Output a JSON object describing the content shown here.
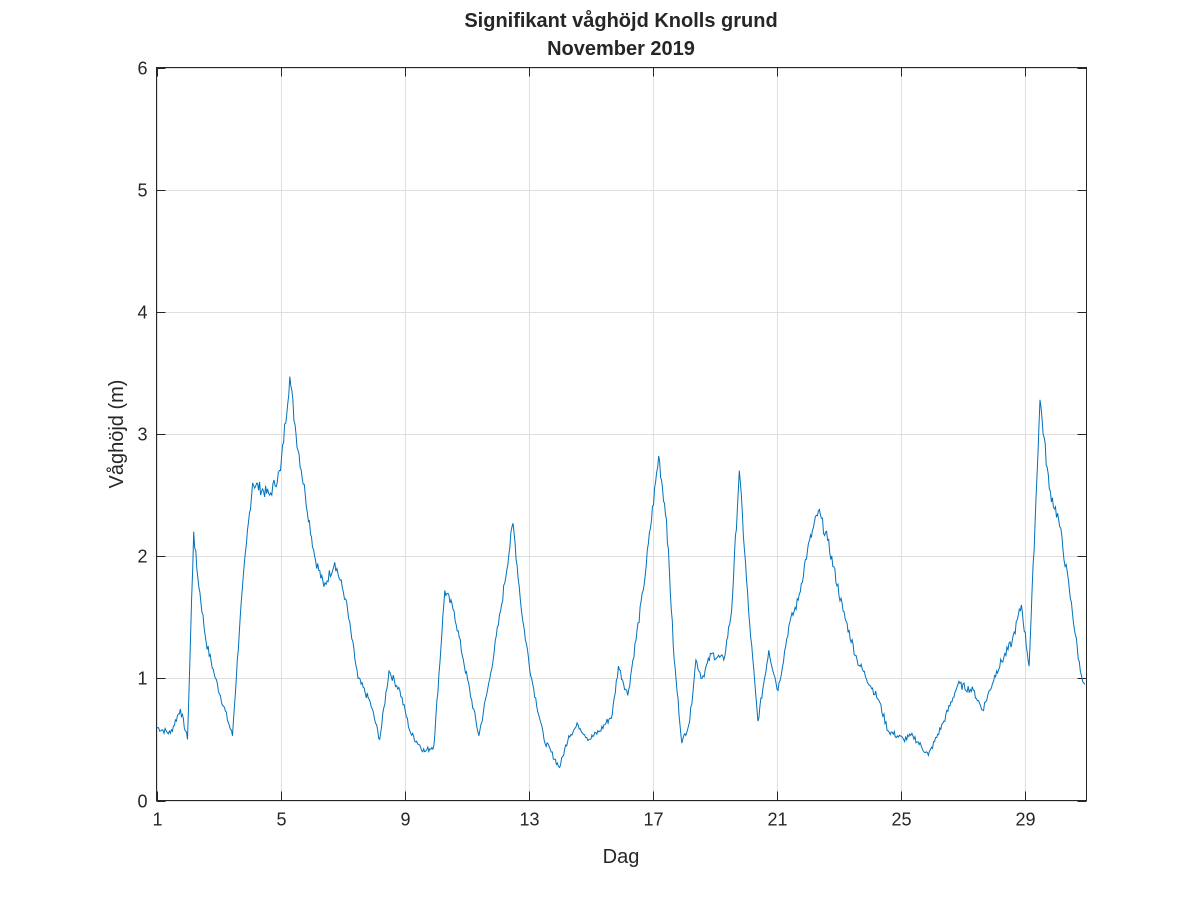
{
  "chart_data": {
    "type": "line",
    "title": [
      "Signifikant våghöjd Knolls grund",
      "November 2019"
    ],
    "xlabel": "Dag",
    "ylabel": "Våghöjd (m)",
    "xlim": [
      1,
      31
    ],
    "ylim": [
      0,
      6
    ],
    "xticks": [
      1,
      5,
      9,
      13,
      17,
      21,
      25,
      29
    ],
    "yticks": [
      0,
      1,
      2,
      3,
      4,
      5,
      6
    ],
    "grid": true,
    "line_color": "#0072BD",
    "series": [
      {
        "name": "Våghöjd",
        "x": [
          1,
          1.45,
          1.77,
          2.0,
          2.2,
          2.3,
          2.6,
          2.9,
          3.45,
          3.7,
          3.9,
          4.1,
          4.65,
          5.0,
          5.3,
          5.5,
          5.8,
          6.1,
          6.4,
          6.75,
          7.1,
          7.5,
          7.9,
          8.2,
          8.5,
          8.85,
          9.2,
          9.65,
          9.95,
          10.3,
          10.6,
          10.9,
          11.4,
          11.75,
          12.1,
          12.5,
          12.8,
          13.1,
          13.5,
          14.0,
          14.3,
          14.6,
          14.95,
          15.3,
          15.7,
          15.9,
          16.2,
          16.7,
          17.2,
          17.45,
          17.7,
          17.95,
          18.2,
          18.4,
          18.6,
          18.9,
          19.3,
          19.55,
          19.8,
          20.1,
          20.4,
          20.75,
          21.05,
          21.4,
          21.7,
          22.0,
          22.35,
          22.65,
          23.15,
          23.6,
          24.3,
          24.6,
          25.1,
          25.4,
          25.9,
          26.4,
          26.85,
          27.35,
          27.65,
          28.1,
          28.6,
          28.9,
          29.15,
          29.5,
          29.8,
          30.1,
          30.45,
          30.8,
          30.95
        ],
        "y": [
          0.6,
          0.55,
          0.75,
          0.5,
          2.2,
          1.9,
          1.3,
          1.0,
          0.53,
          1.5,
          2.1,
          2.6,
          2.5,
          2.7,
          3.47,
          3.0,
          2.5,
          2.0,
          1.75,
          1.95,
          1.65,
          1.0,
          0.8,
          0.5,
          1.06,
          0.9,
          0.55,
          0.4,
          0.45,
          1.72,
          1.55,
          1.15,
          0.53,
          1.0,
          1.55,
          2.27,
          1.5,
          1.0,
          0.5,
          0.27,
          0.53,
          0.62,
          0.5,
          0.57,
          0.7,
          1.1,
          0.86,
          1.72,
          2.82,
          2.3,
          1.15,
          0.47,
          0.65,
          1.15,
          1.0,
          1.2,
          1.15,
          1.55,
          2.7,
          1.55,
          0.65,
          1.23,
          0.9,
          1.43,
          1.64,
          2.05,
          2.37,
          2.13,
          1.55,
          1.15,
          0.82,
          0.57,
          0.5,
          0.53,
          0.37,
          0.65,
          0.95,
          0.9,
          0.74,
          1.06,
          1.3,
          1.6,
          1.1,
          3.28,
          2.55,
          2.3,
          1.72,
          1.06,
          0.95
        ]
      }
    ]
  }
}
